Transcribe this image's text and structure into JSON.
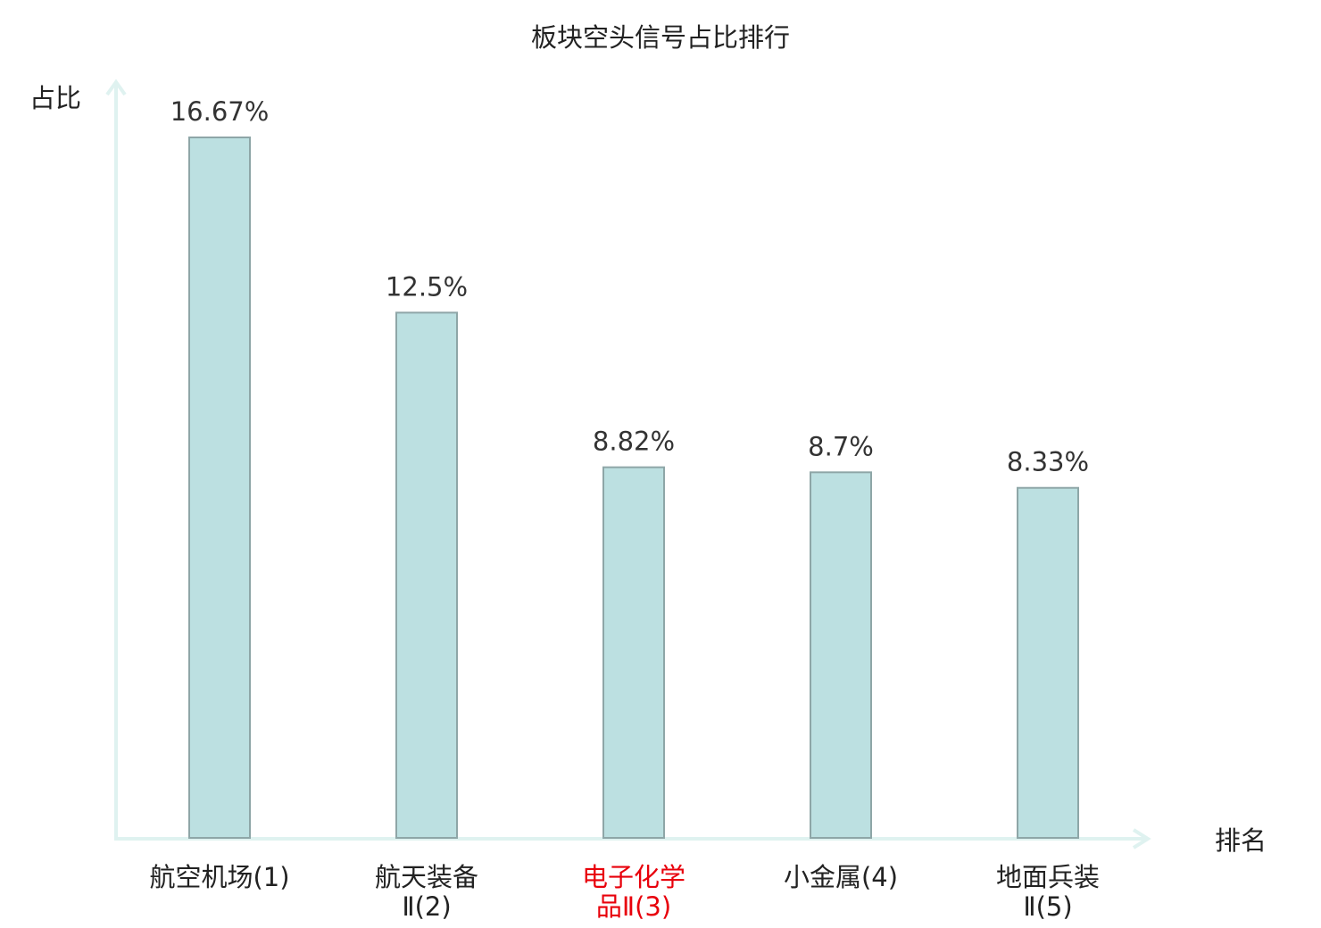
{
  "chart_data": {
    "type": "bar",
    "title": "板块空头信号占比排行",
    "ylabel": "占比",
    "xlabel": "排名",
    "ylim": [
      0,
      16.67
    ],
    "grid": false,
    "categories": [
      [
        "航空机场(1)"
      ],
      [
        "航天装备",
        "Ⅱ(2)"
      ],
      [
        "电子化学",
        "品Ⅱ(3)"
      ],
      [
        "小金属(4)"
      ],
      [
        "地面兵装",
        "Ⅱ(5)"
      ]
    ],
    "values": [
      16.67,
      12.5,
      8.82,
      8.7,
      8.33
    ],
    "value_labels": [
      "16.67%",
      "12.5%",
      "8.82%",
      "8.7%",
      "8.33%"
    ],
    "highlight_index": 2
  },
  "colors": {
    "bar_fill": "#bce0e1",
    "bar_stroke": "#8ea6a7",
    "axis": "#dff2f0",
    "highlight_text": "#e8000b",
    "text": "#222222"
  }
}
